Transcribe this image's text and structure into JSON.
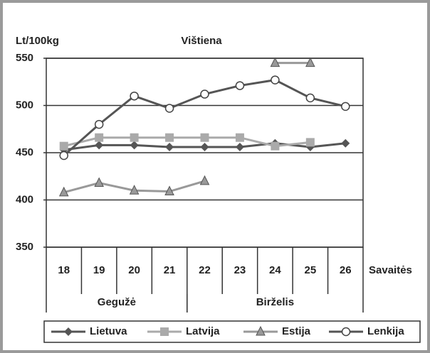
{
  "chart_data": {
    "type": "line",
    "title": "Vištiena",
    "y_label": "Lt/100kg",
    "x_label": "Savaitės",
    "categories": [
      "18",
      "19",
      "20",
      "21",
      "22",
      "23",
      "24",
      "25",
      "26"
    ],
    "groups": [
      {
        "label": "Gegužė",
        "count": 4
      },
      {
        "label": "Birželis",
        "count": 5
      }
    ],
    "series": [
      {
        "name": "Lietuva",
        "color": "#555555",
        "marker": "diamond",
        "values": [
          453,
          458,
          458,
          456,
          456,
          456,
          460,
          456,
          460
        ]
      },
      {
        "name": "Latvija",
        "color": "#aaaaaa",
        "marker": "square",
        "values": [
          457,
          466,
          466,
          466,
          466,
          466,
          457,
          461,
          null
        ]
      },
      {
        "name": "Estija",
        "color": "#999999",
        "marker": "triangle",
        "values": [
          408,
          418,
          410,
          409,
          420,
          null,
          545,
          545,
          null
        ]
      },
      {
        "name": "Lenkija",
        "color": "#555555",
        "marker": "circle",
        "values": [
          447,
          480,
          510,
          497,
          512,
          521,
          527,
          508,
          499
        ]
      }
    ],
    "ylim": [
      350,
      550
    ],
    "yticks": [
      350,
      400,
      450,
      500,
      550
    ],
    "grid": true
  }
}
